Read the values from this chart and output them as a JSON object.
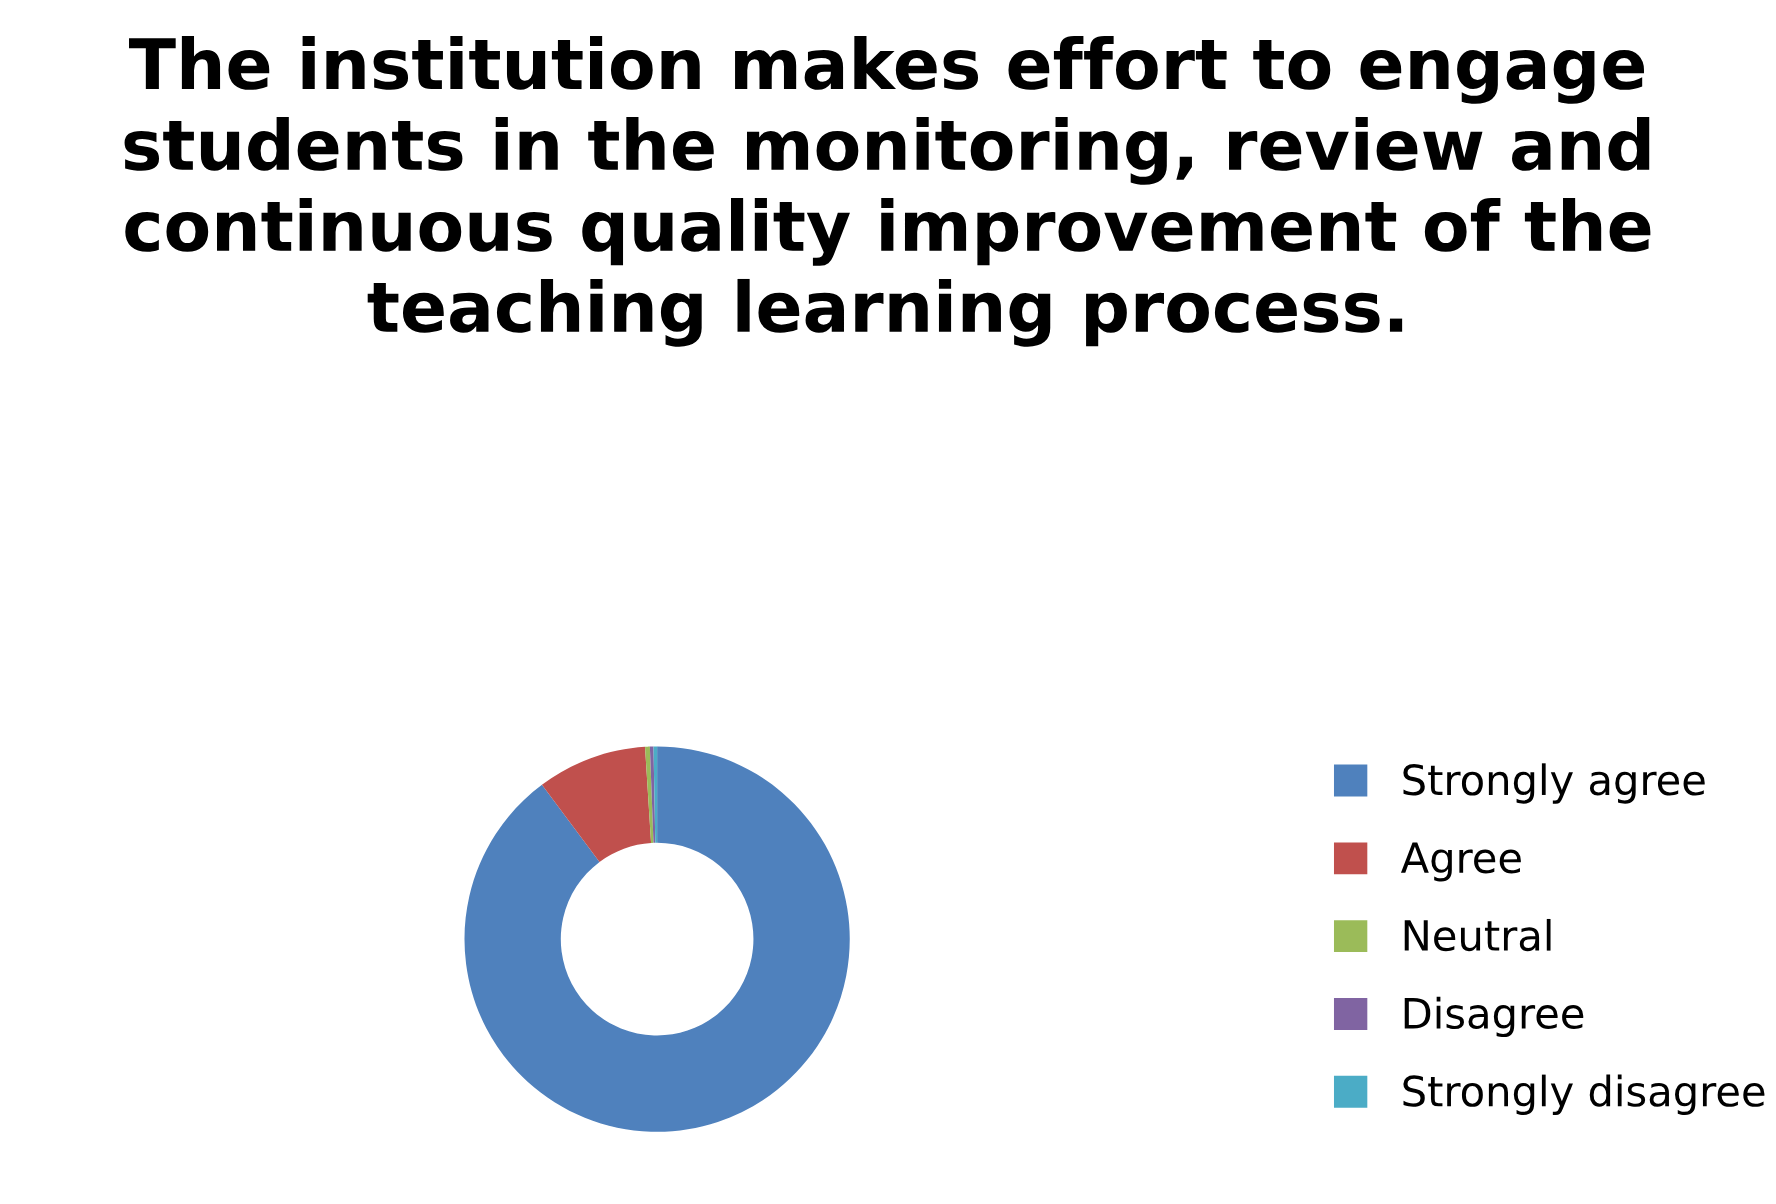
{
  "chart_data": {
    "type": "donut",
    "title": "The institution makes effort to engage students in the monitoring, review and continuous quality improvement of the teaching learning process.",
    "categories": [
      "Strongly agree",
      "Agree",
      "Neutral",
      "Disagree",
      "Strongly disagree"
    ],
    "values": [
      89.8,
      9.2,
      0.4,
      0.3,
      0.3
    ],
    "colors": [
      "#4f81bd",
      "#c0504d",
      "#9bbb59",
      "#8064a2",
      "#4bacc6"
    ],
    "legend": "right"
  }
}
